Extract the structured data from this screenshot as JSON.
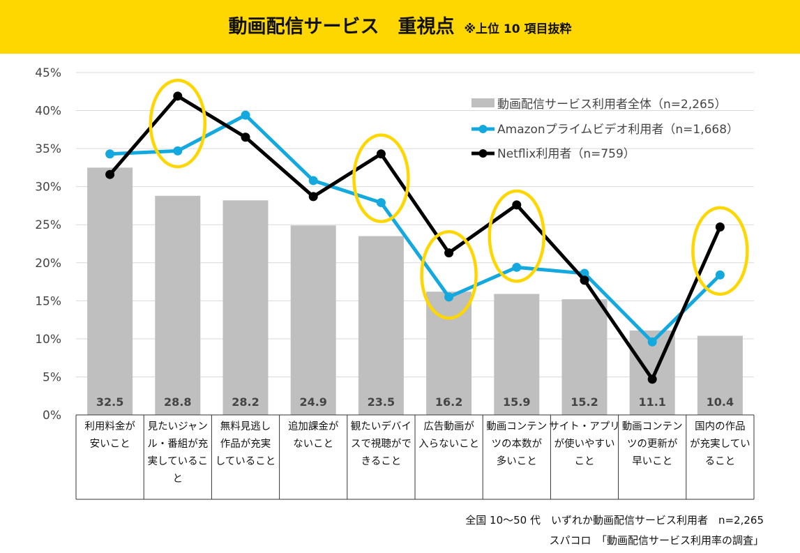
{
  "title": {
    "main": "動画配信サービス　重視点",
    "note": "※上位 10 項目抜粋"
  },
  "chart_data": {
    "type": "bar",
    "categories": [
      [
        "利用料金が",
        "安いこと"
      ],
      [
        "見たいジャン",
        "ル・番組が充",
        "実しているこ",
        "と"
      ],
      [
        "無料見逃し",
        "作品が充実",
        "していること"
      ],
      [
        "追加課金が",
        "ないこと"
      ],
      [
        "観たいデバイ",
        "スで視聴がで",
        "きること"
      ],
      [
        "広告動画が",
        "入らないこと"
      ],
      [
        "動画コンテン",
        "ツの本数が",
        "多いこと"
      ],
      [
        "サイト・アプリ",
        "が使いやすい",
        "こと"
      ],
      [
        "動画コンテン",
        "ツの更新が",
        "早いこと"
      ],
      [
        "国内の作品",
        "が充実してい",
        "ること"
      ]
    ],
    "ylim": [
      0,
      45
    ],
    "yticks": [
      "0%",
      "5%",
      "10%",
      "15%",
      "20%",
      "25%",
      "30%",
      "35%",
      "40%",
      "45%"
    ],
    "series": [
      {
        "name": "動画配信サービス利用者全体（n=2,265）",
        "kind": "bar",
        "color": "#BFBFBF",
        "values": [
          32.5,
          28.8,
          28.2,
          24.9,
          23.5,
          16.2,
          15.9,
          15.2,
          11.1,
          10.4
        ],
        "labels": [
          "32.5",
          "28.8",
          "28.2",
          "24.9",
          "23.5",
          "16.2",
          "15.9",
          "15.2",
          "11.1",
          "10.4"
        ]
      },
      {
        "name": "Amazonプライムビデオ利用者（n=1,668）",
        "kind": "line",
        "color": "#13A8DE",
        "values": [
          34.3,
          34.7,
          39.4,
          30.8,
          27.9,
          15.5,
          19.4,
          18.6,
          9.6,
          18.4
        ]
      },
      {
        "name": "Netflix利用者（n=759）",
        "kind": "line",
        "color": "#000000",
        "values": [
          31.6,
          41.9,
          36.5,
          28.7,
          34.3,
          21.3,
          27.6,
          17.7,
          4.7,
          24.7
        ]
      }
    ],
    "highlighted_categories": [
      1,
      4,
      5,
      6,
      9
    ],
    "highlight_color": "#FFD700",
    "legend_position": "top-right"
  },
  "footer": {
    "line1": "全国 10～50 代　いずれか動画配信サービス利用者　n=2,265",
    "line2": "スパコロ　「動画配信サービス利用率の調査」"
  }
}
